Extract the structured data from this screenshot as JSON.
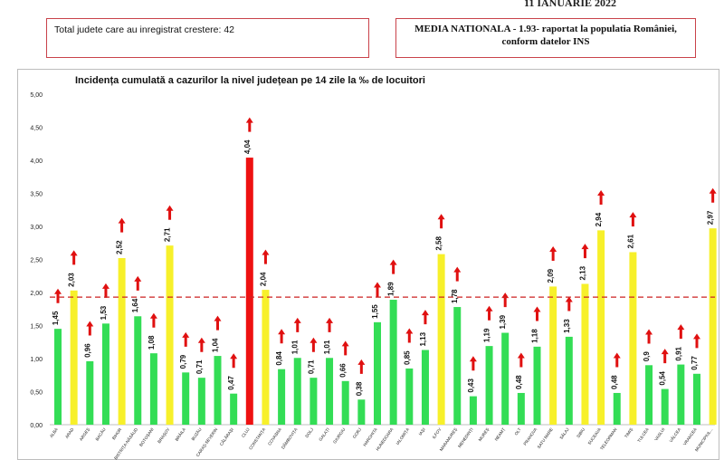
{
  "header": {
    "date": "11 IANUARIE 2022",
    "left_box": "Total judete care au inregistrat crestere: 42",
    "right_box_line1": "MEDIA NATIONALA - 1.93-  raportat la populatia României,",
    "right_box_line2": "conform datelor INS"
  },
  "colors": {
    "green": "#33dd55",
    "yellow": "#f7f02a",
    "red": "#ee1111",
    "arrow": "#e01010",
    "average_line": "#cc2222"
  },
  "chart_data": {
    "type": "bar",
    "title": "Incidența cumulată a cazurilor la nivel județean pe 14 zile la ‰ de locuitori",
    "ylim": [
      0,
      5
    ],
    "yticks": [
      "0,00",
      "0,50",
      "1,00",
      "1,50",
      "2,00",
      "2,50",
      "3,00",
      "3,50",
      "4,00",
      "4,50",
      "5,00"
    ],
    "reference_line": 1.93,
    "categories": [
      "ALBA",
      "ARAD",
      "ARGEȘ",
      "BACĂU",
      "BIHOR",
      "BISTRIȚA-NĂSĂUD",
      "BOTOȘANI",
      "BRAȘOV",
      "BRĂILA",
      "BUZĂU",
      "CARAȘ-SEVERIN",
      "CĂLĂRAȘI",
      "CLUJ",
      "CONSTANȚA",
      "COVASNA",
      "DÂMBOVIȚA",
      "DOLJ",
      "GALAȚI",
      "GIURGIU",
      "GORJ",
      "HARGHITA",
      "HUNEDOARA",
      "IALOMIȚA",
      "IAȘI",
      "ILFOV",
      "MARAMUREȘ",
      "MEHEDINȚI",
      "MUREȘ",
      "NEAMȚ",
      "OLT",
      "PRAHOVA",
      "SATU MARE",
      "SĂLAJ",
      "SIBIU",
      "SUCEAVA",
      "TELEORMAN",
      "TIMIȘ",
      "TULCEA",
      "VASLUI",
      "VÂLCEA",
      "VRANCEA",
      "MUNICIPIUL..."
    ],
    "values": [
      1.45,
      2.03,
      0.96,
      1.53,
      2.52,
      1.64,
      1.08,
      2.71,
      0.79,
      0.71,
      1.04,
      0.47,
      4.04,
      2.04,
      0.84,
      1.01,
      0.71,
      1.01,
      0.66,
      0.38,
      1.55,
      1.89,
      0.85,
      1.13,
      2.58,
      1.78,
      0.43,
      1.19,
      1.39,
      0.48,
      1.18,
      2.09,
      1.33,
      2.13,
      2.94,
      0.48,
      2.61,
      0.9,
      0.54,
      0.91,
      0.77,
      2.97
    ],
    "value_labels": [
      "1,45",
      "2,03",
      "0,96",
      "1,53",
      "2,52",
      "1,64",
      "1,08",
      "2,71",
      "0,79",
      "0,71",
      "1,04",
      "0,47",
      "4,04",
      "2,04",
      "0,84",
      "1,01",
      "0,71",
      "1,01",
      "0,66",
      "0,38",
      "1,55",
      "1,89",
      "0,85",
      "1,13",
      "2,58",
      "1,78",
      "0,43",
      "1,19",
      "1,39",
      "0,48",
      "1,18",
      "2,09",
      "1,33",
      "2,13",
      "2,94",
      "0,48",
      "2,61",
      "0,9",
      "0,54",
      "0,91",
      "0,77",
      "2,97"
    ],
    "bar_colors": [
      "green",
      "yellow",
      "green",
      "green",
      "yellow",
      "green",
      "green",
      "yellow",
      "green",
      "green",
      "green",
      "green",
      "red",
      "yellow",
      "green",
      "green",
      "green",
      "green",
      "green",
      "green",
      "green",
      "green",
      "green",
      "green",
      "yellow",
      "green",
      "green",
      "green",
      "green",
      "green",
      "green",
      "yellow",
      "green",
      "yellow",
      "yellow",
      "green",
      "yellow",
      "green",
      "green",
      "green",
      "green",
      "yellow"
    ],
    "grid": false,
    "legend": "none"
  }
}
